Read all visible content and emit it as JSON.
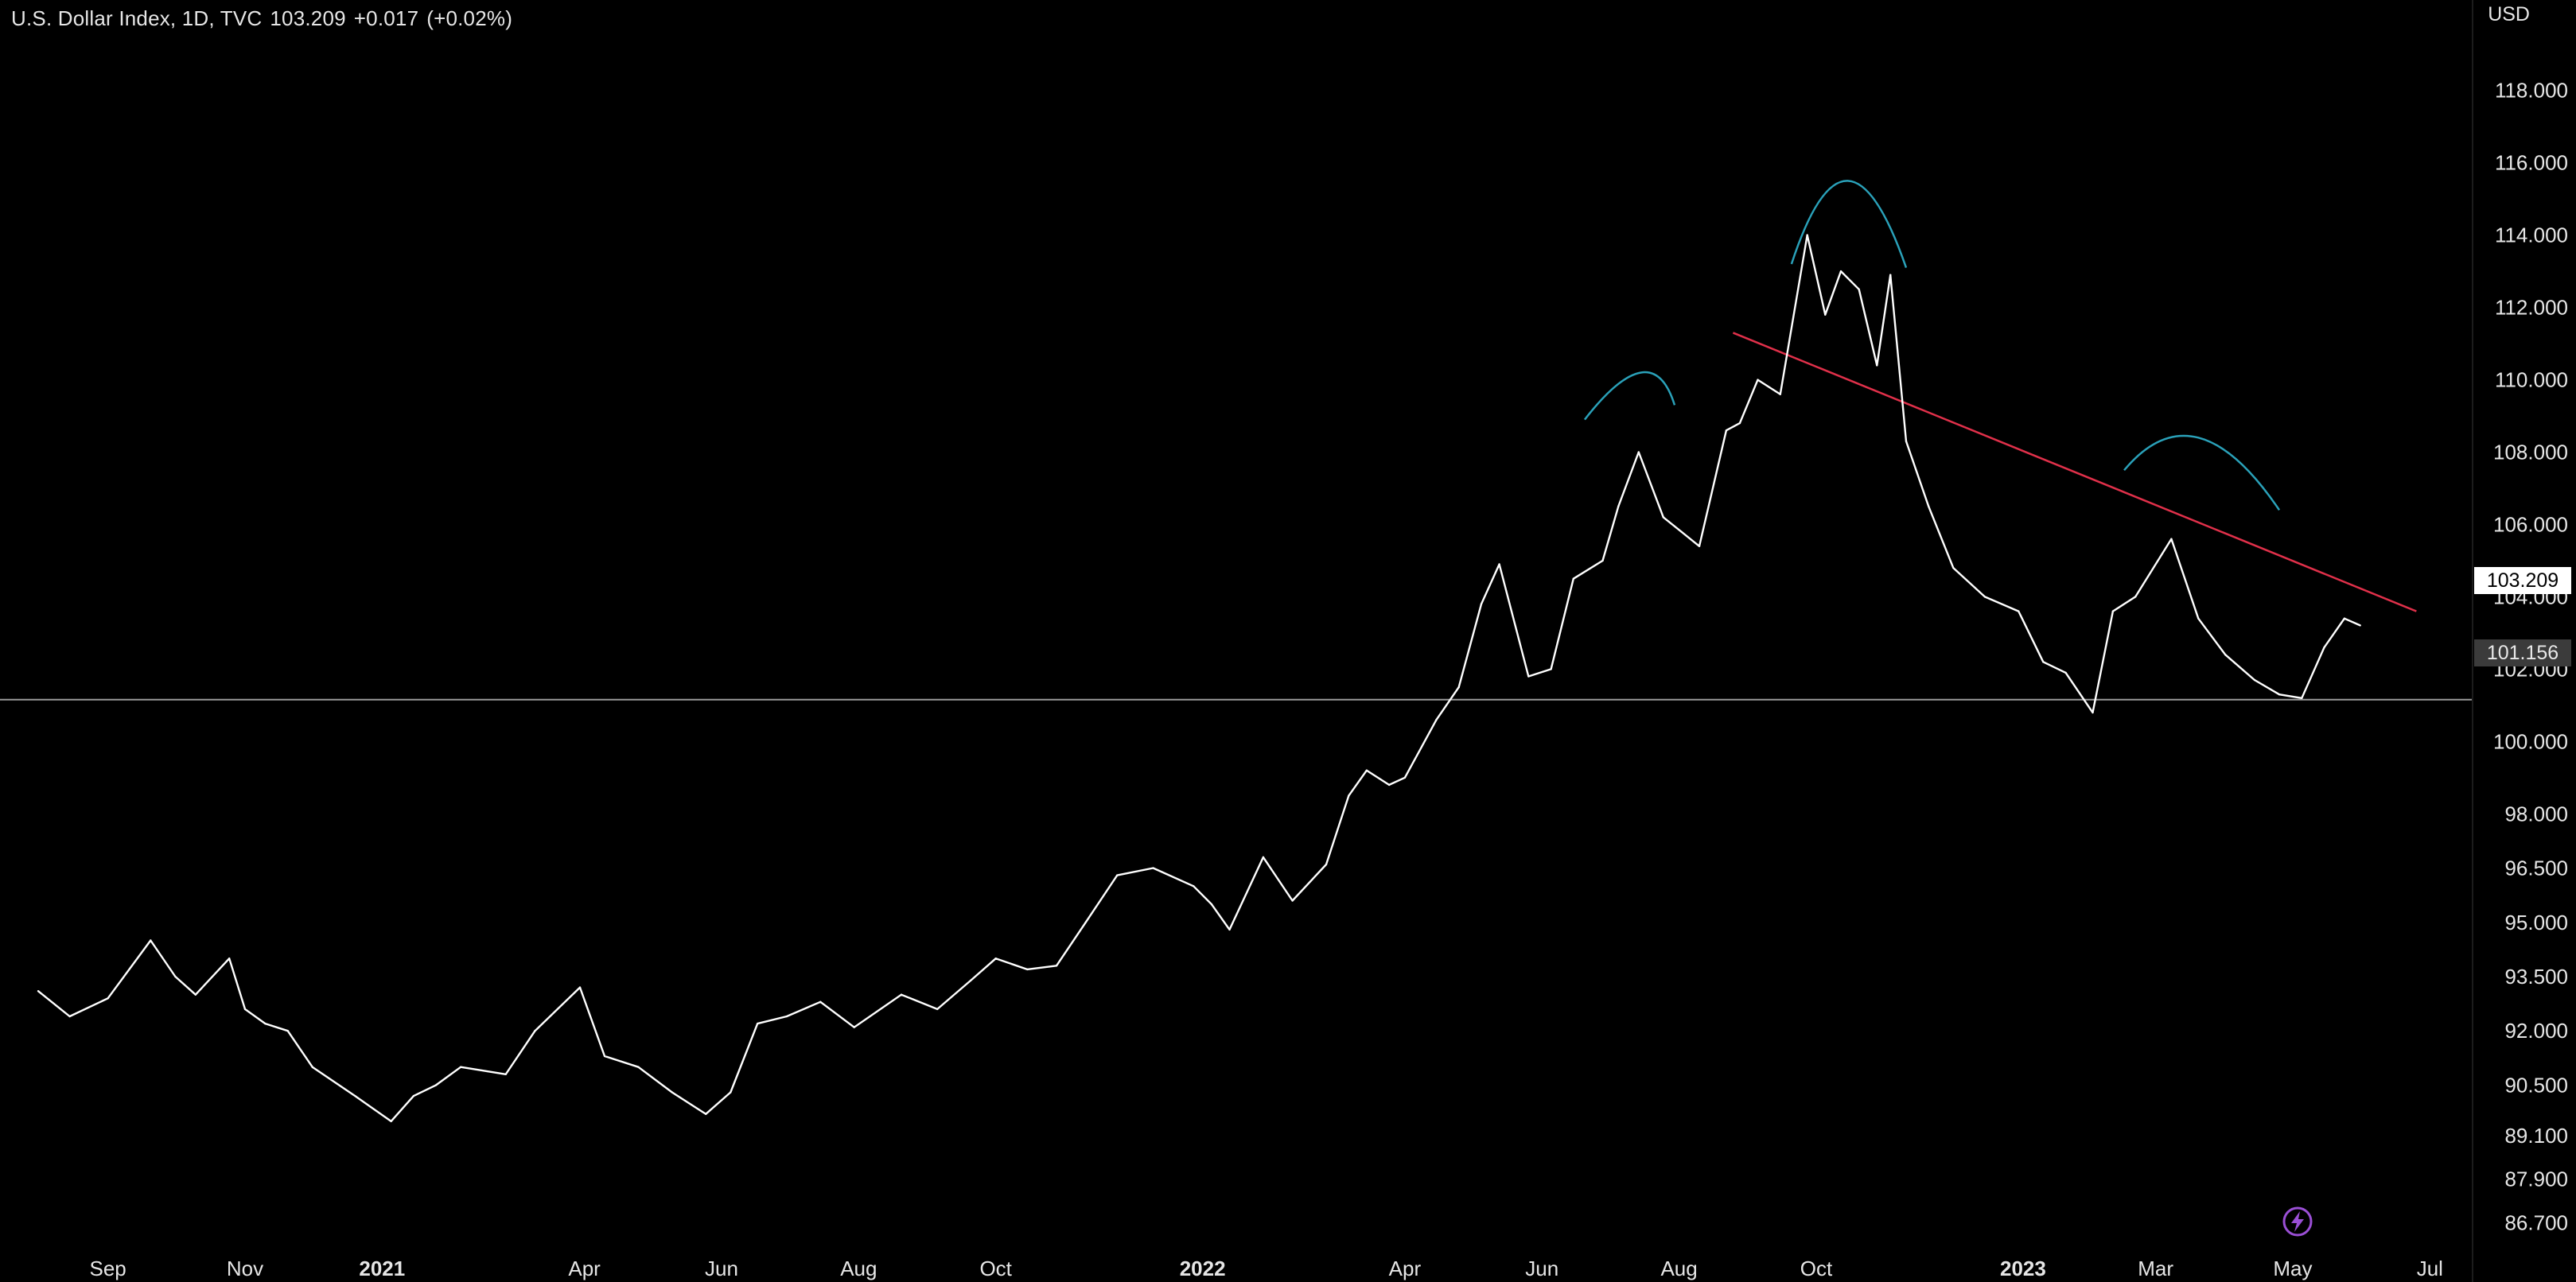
{
  "header": {
    "symbol": "U.S. Dollar Index, 1D, TVC",
    "last": "103.209",
    "change": "+0.017",
    "change_pct": "(+0.02%)"
  },
  "price_axis": {
    "currency": "USD",
    "last_price_badge": "103.209",
    "horizontal_line_badge": "101.156"
  },
  "icons": {
    "bolt": "lightning-bolt-icon"
  },
  "colors": {
    "background": "#000000",
    "price_line": "#ffffff",
    "trend_line": "#e0304a",
    "arcs": "#2aa1b9",
    "horizontal_line": "#9a9a9a",
    "bolt": "#9b4fd6"
  },
  "chart_data": {
    "type": "line",
    "title": "",
    "xlabel": "",
    "ylabel": "",
    "ylim": [
      86.2,
      120.5
    ],
    "x_ticks": [
      "Sep",
      "Nov",
      "2021",
      "Apr",
      "Jun",
      "Aug",
      "Oct",
      "2022",
      "Apr",
      "Jun",
      "Aug",
      "Oct",
      "2023",
      "Mar",
      "May",
      "Jul"
    ],
    "y_ticks": [
      "86.700",
      "87.900",
      "89.100",
      "90.500",
      "92.000",
      "93.500",
      "95.000",
      "96.500",
      "98.000",
      "100.000",
      "102.000",
      "104.000",
      "106.000",
      "108.000",
      "110.000",
      "112.000",
      "114.000",
      "116.000",
      "118.000"
    ],
    "series": [
      {
        "x": [
          "2020-08-01",
          "2020-08-15",
          "2020-09-01",
          "2020-09-20",
          "2020-10-01",
          "2020-10-10",
          "2020-10-25",
          "2020-11-01",
          "2020-11-10",
          "2020-11-20",
          "2020-12-01",
          "2020-12-20",
          "2021-01-05",
          "2021-01-15",
          "2021-01-25",
          "2021-02-05",
          "2021-02-25",
          "2021-03-10",
          "2021-03-30",
          "2021-04-10",
          "2021-04-25",
          "2021-05-10",
          "2021-05-25",
          "2021-06-05",
          "2021-06-17",
          "2021-06-30",
          "2021-07-15",
          "2021-07-30",
          "2021-08-20",
          "2021-09-05",
          "2021-09-20",
          "2021-10-01",
          "2021-10-15",
          "2021-10-28",
          "2021-11-10",
          "2021-11-24",
          "2021-12-10",
          "2021-12-28",
          "2022-01-05",
          "2022-01-13",
          "2022-01-28",
          "2022-02-10",
          "2022-02-25",
          "2022-03-07",
          "2022-03-15",
          "2022-03-25",
          "2022-04-01",
          "2022-04-15",
          "2022-04-25",
          "2022-05-05",
          "2022-05-13",
          "2022-05-26",
          "2022-06-05",
          "2022-06-15",
          "2022-06-28",
          "2022-07-05",
          "2022-07-14",
          "2022-07-25",
          "2022-08-02",
          "2022-08-10",
          "2022-08-22",
          "2022-08-28",
          "2022-09-05",
          "2022-09-15",
          "2022-09-27",
          "2022-10-05",
          "2022-10-12",
          "2022-10-20",
          "2022-10-28",
          "2022-11-03",
          "2022-11-10",
          "2022-11-20",
          "2022-12-01",
          "2022-12-15",
          "2022-12-30",
          "2023-01-10",
          "2023-01-20",
          "2023-02-01",
          "2023-02-10",
          "2023-02-20",
          "2023-03-08",
          "2023-03-20",
          "2023-04-01",
          "2023-04-14",
          "2023-04-25",
          "2023-05-05",
          "2023-05-15",
          "2023-05-24",
          "2023-05-31"
        ],
        "y": [
          93.1,
          92.4,
          92.9,
          94.5,
          93.5,
          93.0,
          94.0,
          92.6,
          92.2,
          92.0,
          91.0,
          90.2,
          89.5,
          90.2,
          90.5,
          91.0,
          90.8,
          92.0,
          93.2,
          91.3,
          91.0,
          90.3,
          89.7,
          90.3,
          92.2,
          92.4,
          92.8,
          92.1,
          93.0,
          92.6,
          93.4,
          94.0,
          93.7,
          93.8,
          95.0,
          96.3,
          96.5,
          96.0,
          95.5,
          94.8,
          96.8,
          95.6,
          96.6,
          98.5,
          99.2,
          98.8,
          99.0,
          100.6,
          101.5,
          103.8,
          104.9,
          101.8,
          102.0,
          104.5,
          105.0,
          106.5,
          108.0,
          106.2,
          105.8,
          105.4,
          108.6,
          108.8,
          110.0,
          109.6,
          114.0,
          111.8,
          113.0,
          112.5,
          110.4,
          112.9,
          108.3,
          106.5,
          104.8,
          104.0,
          103.6,
          102.2,
          101.9,
          100.8,
          103.6,
          104.0,
          105.6,
          103.4,
          102.4,
          101.7,
          101.3,
          101.2,
          102.6,
          103.4,
          103.209
        ]
      }
    ],
    "annotations": {
      "trend_line": {
        "from": [
          "2022-08-25",
          111.3
        ],
        "to": [
          "2023-06-25",
          103.6
        ]
      },
      "horizontal_line": {
        "value": 101.156
      },
      "arcs": [
        {
          "from": [
            "2022-06-20",
            108.9
          ],
          "peak": [
            "2022-07-15",
            110.2
          ],
          "to": [
            "2022-07-30",
            109.3
          ]
        },
        {
          "from": [
            "2022-09-20",
            113.2
          ],
          "peak": [
            "2022-10-15",
            115.5
          ],
          "to": [
            "2022-11-10",
            113.1
          ]
        },
        {
          "from": [
            "2023-02-15",
            107.5
          ],
          "peak": [
            "2023-03-20",
            108.4
          ],
          "to": [
            "2023-04-25",
            106.4
          ]
        }
      ]
    }
  }
}
